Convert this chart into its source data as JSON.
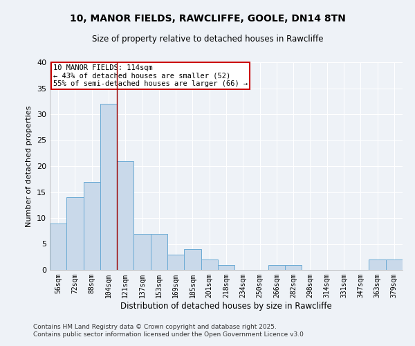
{
  "title": "10, MANOR FIELDS, RAWCLIFFE, GOOLE, DN14 8TN",
  "subtitle": "Size of property relative to detached houses in Rawcliffe",
  "xlabel": "Distribution of detached houses by size in Rawcliffe",
  "ylabel": "Number of detached properties",
  "categories": [
    "56sqm",
    "72sqm",
    "88sqm",
    "104sqm",
    "121sqm",
    "137sqm",
    "153sqm",
    "169sqm",
    "185sqm",
    "201sqm",
    "218sqm",
    "234sqm",
    "250sqm",
    "266sqm",
    "282sqm",
    "298sqm",
    "314sqm",
    "331sqm",
    "347sqm",
    "363sqm",
    "379sqm"
  ],
  "values": [
    9,
    14,
    17,
    32,
    21,
    7,
    7,
    3,
    4,
    2,
    1,
    0,
    0,
    1,
    1,
    0,
    0,
    0,
    0,
    2,
    2
  ],
  "bar_color": "#c9d9ea",
  "bar_edge_color": "#6aaad4",
  "background_color": "#eef2f7",
  "grid_color": "#ffffff",
  "vline_color": "#990000",
  "annotation_text": "10 MANOR FIELDS: 114sqm\n← 43% of detached houses are smaller (52)\n55% of semi-detached houses are larger (66) →",
  "annotation_box_color": "#ffffff",
  "annotation_box_edge": "#cc0000",
  "footer1": "Contains HM Land Registry data © Crown copyright and database right 2025.",
  "footer2": "Contains public sector information licensed under the Open Government Licence v3.0",
  "ylim": [
    0,
    40
  ],
  "yticks": [
    0,
    5,
    10,
    15,
    20,
    25,
    30,
    35,
    40
  ]
}
